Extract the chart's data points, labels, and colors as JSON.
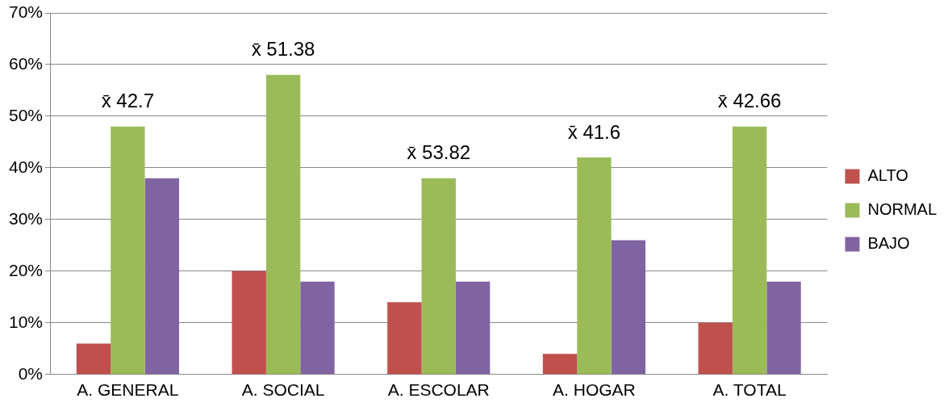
{
  "chart_data": {
    "type": "bar",
    "categories": [
      "A. GENERAL",
      "A. SOCIAL",
      "A. ESCOLAR",
      "A. HOGAR",
      "A. TOTAL"
    ],
    "series": [
      {
        "name": "ALTO",
        "color": "#c0504d",
        "values": [
          6,
          20,
          14,
          4,
          10
        ]
      },
      {
        "name": "NORMAL",
        "color": "#9bbb59",
        "values": [
          48,
          58,
          38,
          42,
          48
        ]
      },
      {
        "name": "BAJO",
        "color": "#8064a2",
        "values": [
          38,
          18,
          18,
          26,
          18
        ]
      }
    ],
    "ylim": [
      0,
      70
    ],
    "yticks": [
      {
        "value": 0,
        "label": "0%"
      },
      {
        "value": 10,
        "label": "10%"
      },
      {
        "value": 20,
        "label": "20%"
      },
      {
        "value": 30,
        "label": "30%"
      },
      {
        "value": 40,
        "label": "40%"
      },
      {
        "value": 50,
        "label": "50%"
      },
      {
        "value": 60,
        "label": "60%"
      },
      {
        "value": 70,
        "label": "70%"
      }
    ],
    "grid": "y",
    "legend": "right",
    "annotations": [
      "x̄ 42.7",
      "x̄ 51.38",
      "x̄ 53.82",
      "x̄ 41.6",
      "x̄ 42.66"
    ]
  }
}
